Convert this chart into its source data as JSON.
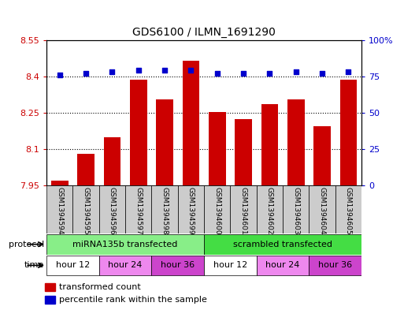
{
  "title": "GDS6100 / ILMN_1691290",
  "samples": [
    "GSM1394594",
    "GSM1394595",
    "GSM1394596",
    "GSM1394597",
    "GSM1394598",
    "GSM1394599",
    "GSM1394600",
    "GSM1394601",
    "GSM1394602",
    "GSM1394603",
    "GSM1394604",
    "GSM1394605"
  ],
  "bar_values": [
    7.97,
    8.08,
    8.15,
    8.385,
    8.305,
    8.465,
    8.255,
    8.225,
    8.285,
    8.305,
    8.195,
    8.385
  ],
  "percentile_values": [
    76,
    77,
    78,
    79,
    79,
    79,
    77,
    77,
    77,
    78,
    77,
    78
  ],
  "ylim_left": [
    7.95,
    8.55
  ],
  "ylim_right": [
    0,
    100
  ],
  "yticks_left": [
    7.95,
    8.1,
    8.25,
    8.4,
    8.55
  ],
  "yticks_right": [
    0,
    25,
    50,
    75,
    100
  ],
  "ytick_labels_left": [
    "7.95",
    "8.1",
    "8.25",
    "8.4",
    "8.55"
  ],
  "ytick_labels_right": [
    "0",
    "25",
    "50",
    "75",
    "100%"
  ],
  "bar_color": "#cc0000",
  "dot_color": "#0000cc",
  "protocol_groups": [
    {
      "label": "miRNA135b transfected",
      "start": 0,
      "end": 6,
      "color": "#88ee88"
    },
    {
      "label": "scrambled transfected",
      "start": 6,
      "end": 12,
      "color": "#44dd44"
    }
  ],
  "time_colors": {
    "hour 12": "#ffffff",
    "hour 24": "#ee88ee",
    "hour 36": "#cc44cc"
  },
  "time_groups": [
    {
      "label": "hour 12",
      "start": 0,
      "end": 2
    },
    {
      "label": "hour 24",
      "start": 2,
      "end": 4
    },
    {
      "label": "hour 36",
      "start": 4,
      "end": 6
    },
    {
      "label": "hour 12",
      "start": 6,
      "end": 8
    },
    {
      "label": "hour 24",
      "start": 8,
      "end": 10
    },
    {
      "label": "hour 36",
      "start": 10,
      "end": 12
    }
  ],
  "legend_items": [
    {
      "label": "transformed count",
      "color": "#cc0000"
    },
    {
      "label": "percentile rank within the sample",
      "color": "#0000cc"
    }
  ],
  "bg_color": "#ffffff",
  "sample_bg_color": "#cccccc"
}
